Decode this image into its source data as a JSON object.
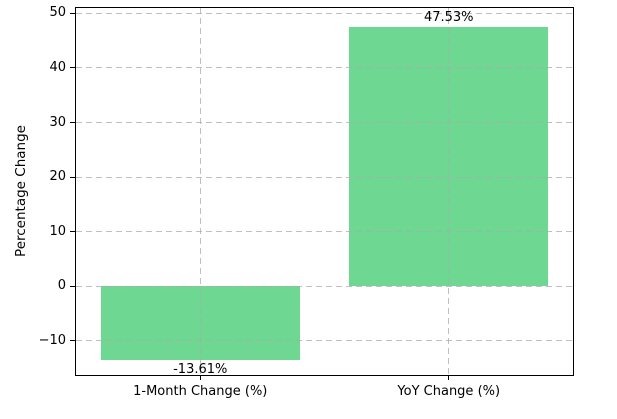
{
  "figure": {
    "background": "#ffffff"
  },
  "chart_data": {
    "type": "bar",
    "title": "",
    "categories": [
      "1-Month Change (%)",
      "YoY Change (%)"
    ],
    "values": [
      -13.61,
      47.53
    ],
    "bar_value_labels": [
      "-13.61%",
      "47.53%"
    ],
    "bar_color": "#6ed892",
    "xlabel": "",
    "ylabel": "Percentage Change",
    "ylim": [
      -16.3,
      51.0
    ],
    "yticks": [
      -10,
      0,
      10,
      20,
      30,
      40,
      50
    ],
    "ytick_labels": [
      "−10",
      "0",
      "10",
      "20",
      "30",
      "40",
      "50"
    ],
    "grid": true,
    "grid_style": "dashed",
    "grid_color": "#aaaaaa",
    "legend_position": "none",
    "bar_width_fraction": 0.8
  }
}
